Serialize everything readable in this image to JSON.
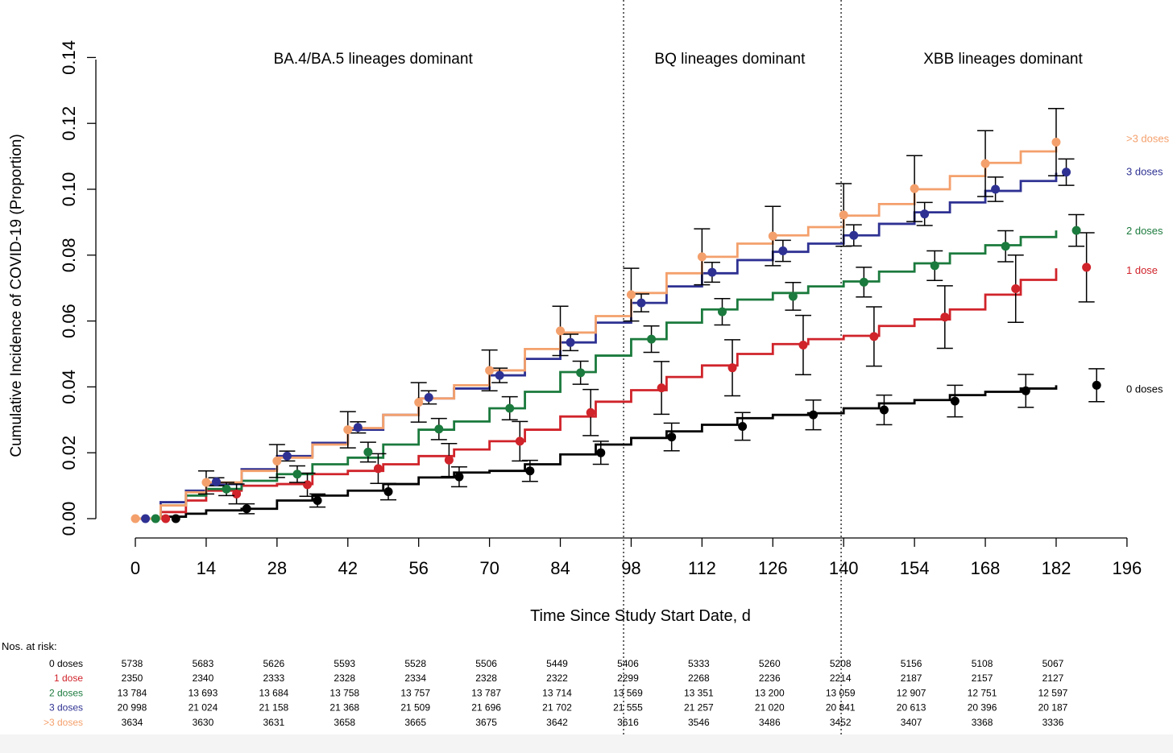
{
  "chart_data": {
    "type": "line",
    "ylabel": "Cumulative Incidence of COVID-19 (Proportion)",
    "xlabel": "Time Since Study Start Date, d",
    "xlim": [
      0,
      196
    ],
    "ylim": [
      0,
      0.14
    ],
    "x_ticks": [
      0,
      14,
      28,
      42,
      56,
      70,
      84,
      98,
      112,
      126,
      140,
      154,
      168,
      182,
      196
    ],
    "y_ticks": [
      "0.00",
      "0.02",
      "0.04",
      "0.06",
      "0.08",
      "0.10",
      "0.12",
      "0.14"
    ],
    "grid": false,
    "legend_placement": "right",
    "periods": [
      {
        "label": "BA.4/BA.5 lineages dominant",
        "x_center": 47
      },
      {
        "label": "BQ lineages dominant",
        "x_center": 117.5
      },
      {
        "label": "XBB lineages dominant",
        "x_center": 171.5
      }
    ],
    "period_dividers": [
      96.5,
      139.5
    ],
    "series": [
      {
        "name": "0 doses",
        "color": "#000000",
        "curve": [
          [
            0,
            0.0
          ],
          [
            5,
            0.0006
          ],
          [
            10,
            0.0015
          ],
          [
            14,
            0.0025
          ],
          [
            21,
            0.003
          ],
          [
            28,
            0.0055
          ],
          [
            35,
            0.007
          ],
          [
            42,
            0.0085
          ],
          [
            49,
            0.0105
          ],
          [
            56,
            0.0125
          ],
          [
            63,
            0.014
          ],
          [
            70,
            0.0145
          ],
          [
            77,
            0.0165
          ],
          [
            84,
            0.0195
          ],
          [
            91,
            0.0225
          ],
          [
            98,
            0.0245
          ],
          [
            105,
            0.0265
          ],
          [
            112,
            0.0285
          ],
          [
            119,
            0.0305
          ],
          [
            126,
            0.0315
          ],
          [
            133,
            0.032
          ],
          [
            140,
            0.0335
          ],
          [
            147,
            0.035
          ],
          [
            154,
            0.036
          ],
          [
            161,
            0.0375
          ],
          [
            168,
            0.0385
          ],
          [
            175,
            0.0395
          ],
          [
            182,
            0.0405
          ]
        ],
        "points": [
          [
            8,
            0.0,
            0.0
          ],
          [
            22,
            0.003,
            0.0015
          ],
          [
            36,
            0.0055,
            0.002
          ],
          [
            50,
            0.0082,
            0.0025
          ],
          [
            64,
            0.0127,
            0.003
          ],
          [
            78,
            0.0145,
            0.0032
          ],
          [
            92,
            0.02,
            0.0035
          ],
          [
            106,
            0.0248,
            0.0042
          ],
          [
            120,
            0.028,
            0.0042
          ],
          [
            134,
            0.0315,
            0.0045
          ],
          [
            148,
            0.033,
            0.0045
          ],
          [
            162,
            0.0357,
            0.0048
          ],
          [
            176,
            0.0388,
            0.005
          ],
          [
            190,
            0.0405,
            0.005
          ]
        ]
      },
      {
        "name": "1 dose",
        "color": "#d0232a",
        "curve": [
          [
            0,
            0.0
          ],
          [
            5,
            0.002
          ],
          [
            10,
            0.0055
          ],
          [
            14,
            0.0085
          ],
          [
            21,
            0.01
          ],
          [
            28,
            0.0105
          ],
          [
            35,
            0.0135
          ],
          [
            42,
            0.0145
          ],
          [
            49,
            0.0165
          ],
          [
            56,
            0.019
          ],
          [
            63,
            0.021
          ],
          [
            70,
            0.0235
          ],
          [
            77,
            0.027
          ],
          [
            84,
            0.031
          ],
          [
            91,
            0.0355
          ],
          [
            98,
            0.039
          ],
          [
            105,
            0.043
          ],
          [
            112,
            0.0465
          ],
          [
            119,
            0.05
          ],
          [
            126,
            0.053
          ],
          [
            133,
            0.0545
          ],
          [
            140,
            0.0555
          ],
          [
            147,
            0.0585
          ],
          [
            154,
            0.0605
          ],
          [
            161,
            0.0635
          ],
          [
            168,
            0.068
          ],
          [
            175,
            0.0725
          ],
          [
            182,
            0.076
          ]
        ],
        "points": [
          [
            6,
            0.0,
            0.0
          ],
          [
            20,
            0.0075,
            0.003
          ],
          [
            34,
            0.0103,
            0.0035
          ],
          [
            48,
            0.0152,
            0.0045
          ],
          [
            62,
            0.0178,
            0.005
          ],
          [
            76,
            0.0235,
            0.006
          ],
          [
            90,
            0.0322,
            0.007
          ],
          [
            104,
            0.0397,
            0.008
          ],
          [
            118,
            0.0458,
            0.0085
          ],
          [
            132,
            0.0527,
            0.009
          ],
          [
            146,
            0.0553,
            0.009
          ],
          [
            160,
            0.0612,
            0.0095
          ],
          [
            174,
            0.0698,
            0.0102
          ],
          [
            188,
            0.0763,
            0.0105
          ]
        ]
      },
      {
        "name": "2 doses",
        "color": "#1b7a3d",
        "curve": [
          [
            0,
            0.0
          ],
          [
            5,
            0.004
          ],
          [
            10,
            0.007
          ],
          [
            14,
            0.009
          ],
          [
            21,
            0.0115
          ],
          [
            28,
            0.0135
          ],
          [
            35,
            0.0165
          ],
          [
            42,
            0.0185
          ],
          [
            49,
            0.0225
          ],
          [
            56,
            0.027
          ],
          [
            63,
            0.0295
          ],
          [
            70,
            0.0335
          ],
          [
            77,
            0.0385
          ],
          [
            84,
            0.0445
          ],
          [
            91,
            0.0495
          ],
          [
            98,
            0.0545
          ],
          [
            105,
            0.0595
          ],
          [
            112,
            0.0635
          ],
          [
            119,
            0.0665
          ],
          [
            126,
            0.0685
          ],
          [
            133,
            0.0705
          ],
          [
            140,
            0.072
          ],
          [
            147,
            0.075
          ],
          [
            154,
            0.0775
          ],
          [
            161,
            0.0805
          ],
          [
            168,
            0.083
          ],
          [
            175,
            0.0855
          ],
          [
            182,
            0.0875
          ]
        ],
        "points": [
          [
            4,
            0.0,
            0.0
          ],
          [
            18,
            0.009,
            0.002
          ],
          [
            32,
            0.0135,
            0.0025
          ],
          [
            46,
            0.0202,
            0.003
          ],
          [
            60,
            0.0272,
            0.0032
          ],
          [
            74,
            0.0335,
            0.0035
          ],
          [
            88,
            0.0443,
            0.0035
          ],
          [
            102,
            0.0545,
            0.004
          ],
          [
            116,
            0.0628,
            0.004
          ],
          [
            130,
            0.0675,
            0.0042
          ],
          [
            144,
            0.0718,
            0.0045
          ],
          [
            158,
            0.0768,
            0.0045
          ],
          [
            172,
            0.0827,
            0.0047
          ],
          [
            186,
            0.0875,
            0.0048
          ]
        ]
      },
      {
        "name": "3 doses",
        "color": "#2e3192",
        "curve": [
          [
            0,
            0.0
          ],
          [
            5,
            0.005
          ],
          [
            10,
            0.0085
          ],
          [
            14,
            0.0105
          ],
          [
            21,
            0.015
          ],
          [
            28,
            0.019
          ],
          [
            35,
            0.023
          ],
          [
            42,
            0.027
          ],
          [
            49,
            0.0315
          ],
          [
            56,
            0.0365
          ],
          [
            63,
            0.0395
          ],
          [
            70,
            0.0435
          ],
          [
            77,
            0.0485
          ],
          [
            84,
            0.0535
          ],
          [
            91,
            0.0595
          ],
          [
            98,
            0.0655
          ],
          [
            105,
            0.0705
          ],
          [
            112,
            0.0745
          ],
          [
            119,
            0.0785
          ],
          [
            126,
            0.081
          ],
          [
            133,
            0.0835
          ],
          [
            140,
            0.086
          ],
          [
            147,
            0.0895
          ],
          [
            154,
            0.093
          ],
          [
            161,
            0.096
          ],
          [
            168,
            0.0995
          ],
          [
            175,
            0.1025
          ],
          [
            182,
            0.105
          ]
        ],
        "points": [
          [
            2,
            0.0,
            0.0
          ],
          [
            16,
            0.0112,
            0.0012
          ],
          [
            30,
            0.019,
            0.0015
          ],
          [
            44,
            0.0277,
            0.0017
          ],
          [
            58,
            0.0368,
            0.002
          ],
          [
            72,
            0.0435,
            0.0022
          ],
          [
            86,
            0.0535,
            0.0025
          ],
          [
            100,
            0.0655,
            0.0027
          ],
          [
            114,
            0.0748,
            0.003
          ],
          [
            128,
            0.0813,
            0.0032
          ],
          [
            142,
            0.086,
            0.0032
          ],
          [
            156,
            0.0925,
            0.0035
          ],
          [
            170,
            0.1,
            0.0037
          ],
          [
            184,
            0.1052,
            0.004
          ]
        ]
      },
      {
        "name": ">3 doses",
        "color": "#f4a06c",
        "curve": [
          [
            0,
            0.0
          ],
          [
            5,
            0.004
          ],
          [
            10,
            0.008
          ],
          [
            14,
            0.011
          ],
          [
            21,
            0.0145
          ],
          [
            28,
            0.0185
          ],
          [
            35,
            0.0225
          ],
          [
            42,
            0.0275
          ],
          [
            49,
            0.0315
          ],
          [
            56,
            0.0365
          ],
          [
            63,
            0.0405
          ],
          [
            70,
            0.045
          ],
          [
            77,
            0.0515
          ],
          [
            84,
            0.0565
          ],
          [
            91,
            0.0615
          ],
          [
            98,
            0.0685
          ],
          [
            105,
            0.0745
          ],
          [
            112,
            0.0795
          ],
          [
            119,
            0.0835
          ],
          [
            126,
            0.086
          ],
          [
            133,
            0.0885
          ],
          [
            140,
            0.092
          ],
          [
            147,
            0.0955
          ],
          [
            154,
            0.1
          ],
          [
            161,
            0.104
          ],
          [
            168,
            0.108
          ],
          [
            175,
            0.1115
          ],
          [
            182,
            0.114
          ]
        ],
        "points": [
          [
            0,
            0.0,
            0.0
          ],
          [
            14,
            0.011,
            0.0035
          ],
          [
            28,
            0.0175,
            0.005
          ],
          [
            42,
            0.027,
            0.0055
          ],
          [
            56,
            0.0353,
            0.006
          ],
          [
            70,
            0.045,
            0.0062
          ],
          [
            84,
            0.057,
            0.0075
          ],
          [
            98,
            0.068,
            0.008
          ],
          [
            112,
            0.0795,
            0.0085
          ],
          [
            126,
            0.0858,
            0.009
          ],
          [
            140,
            0.0922,
            0.0095
          ],
          [
            154,
            0.1002,
            0.01
          ],
          [
            168,
            0.1078,
            0.01
          ],
          [
            182,
            0.1143,
            0.0102
          ]
        ]
      }
    ],
    "legend": [
      {
        "label": ">3 doses",
        "color": "#f4a06c",
        "y": 0.1155
      },
      {
        "label": "3 doses",
        "color": "#2e3192",
        "y": 0.1055
      },
      {
        "label": "2 doses",
        "color": "#1b7a3d",
        "y": 0.0875
      },
      {
        "label": "1 dose",
        "color": "#d0232a",
        "y": 0.0755
      },
      {
        "label": "0 doses",
        "color": "#000000",
        "y": 0.0395
      }
    ],
    "risk_table": {
      "title": "Nos. at risk:",
      "time_points": [
        0,
        14,
        28,
        42,
        56,
        70,
        84,
        98,
        112,
        126,
        140,
        154,
        168,
        182
      ],
      "rows": [
        {
          "label": "0 doses",
          "color": "#000000",
          "values": [
            "5738",
            "5683",
            "5626",
            "5593",
            "5528",
            "5506",
            "5449",
            "5406",
            "5333",
            "5260",
            "5208",
            "5156",
            "5108",
            "5067"
          ]
        },
        {
          "label": "1 dose",
          "color": "#d0232a",
          "values": [
            "2350",
            "2340",
            "2333",
            "2328",
            "2334",
            "2328",
            "2322",
            "2299",
            "2268",
            "2236",
            "2214",
            "2187",
            "2157",
            "2127"
          ]
        },
        {
          "label": "2 doses",
          "color": "#1b7a3d",
          "values": [
            "13 784",
            "13 693",
            "13 684",
            "13 758",
            "13 757",
            "13 787",
            "13 714",
            "13 569",
            "13 351",
            "13 200",
            "13 059",
            "12 907",
            "12 751",
            "12 597"
          ]
        },
        {
          "label": "3 doses",
          "color": "#2e3192",
          "values": [
            "20 998",
            "21 024",
            "21 158",
            "21 368",
            "21 509",
            "21 696",
            "21 702",
            "21 555",
            "21 257",
            "21 020",
            "20 841",
            "20 613",
            "20 396",
            "20 187"
          ]
        },
        {
          "label": ">3 doses",
          "color": "#f4a06c",
          "values": [
            "3634",
            "3630",
            "3631",
            "3658",
            "3665",
            "3675",
            "3642",
            "3616",
            "3546",
            "3486",
            "3452",
            "3407",
            "3368",
            "3336"
          ]
        }
      ]
    }
  }
}
